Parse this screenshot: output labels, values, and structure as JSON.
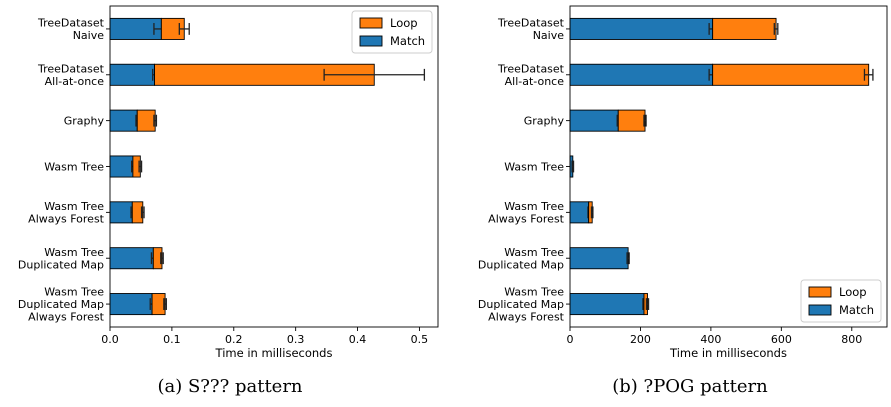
{
  "colors": {
    "match": "#1f77b4",
    "loop": "#ff7f0e",
    "edge": "#000000"
  },
  "chart_data": [
    {
      "type": "bar",
      "orientation": "horizontal",
      "stacked": true,
      "caption": "(a) S??? pattern",
      "xlabel": "Time in milliseconds",
      "xlim": [
        0,
        0.53
      ],
      "xticks": [
        0.0,
        0.1,
        0.2,
        0.3,
        0.4,
        0.5
      ],
      "xtick_labels": [
        "0.0",
        "0.1",
        "0.2",
        "0.3",
        "0.4",
        "0.5"
      ],
      "legend": {
        "position": "top-right",
        "entries": [
          "Loop",
          "Match"
        ]
      },
      "categories": [
        [
          "TreeDataset",
          "Naive"
        ],
        [
          "TreeDataset",
          "All-at-once"
        ],
        [
          "Graphy"
        ],
        [
          "Wasm Tree"
        ],
        [
          "Wasm Tree",
          "Always Forest"
        ],
        [
          "Wasm Tree",
          "Duplicated Map"
        ],
        [
          "Wasm Tree",
          "Duplicated Map",
          "Always Forest"
        ]
      ],
      "series": [
        {
          "name": "Match",
          "values": [
            0.083,
            0.072,
            0.044,
            0.037,
            0.036,
            0.07,
            0.068
          ],
          "errors": [
            0.012,
            0.003,
            0.002,
            0.002,
            0.002,
            0.003,
            0.003
          ]
        },
        {
          "name": "Loop",
          "values": [
            0.037,
            0.355,
            0.029,
            0.012,
            0.017,
            0.014,
            0.021
          ],
          "errors": [
            0.008,
            0.081,
            0.002,
            0.002,
            0.002,
            0.002,
            0.002
          ]
        }
      ]
    },
    {
      "type": "bar",
      "orientation": "horizontal",
      "stacked": true,
      "caption": "(b) ?POG pattern",
      "xlabel": "Time in milliseconds",
      "xlim": [
        0,
        900
      ],
      "xticks": [
        0,
        200,
        400,
        600,
        800
      ],
      "xtick_labels": [
        "0",
        "200",
        "400",
        "600",
        "800"
      ],
      "legend": {
        "position": "bottom-right",
        "entries": [
          "Loop",
          "Match"
        ]
      },
      "categories": [
        [
          "TreeDataset",
          "Naive"
        ],
        [
          "TreeDataset",
          "All-at-once"
        ],
        [
          "Graphy"
        ],
        [
          "Wasm Tree"
        ],
        [
          "Wasm Tree",
          "Always Forest"
        ],
        [
          "Wasm Tree",
          "Duplicated Map"
        ],
        [
          "Wasm Tree",
          "Duplicated Map",
          "Always Forest"
        ]
      ],
      "series": [
        {
          "name": "Match",
          "values": [
            405,
            405,
            137,
            8,
            53,
            165,
            210
          ],
          "errors": [
            10,
            10,
            3,
            2,
            2,
            3,
            3
          ]
        },
        {
          "name": "Loop",
          "values": [
            180,
            443,
            76,
            0,
            10,
            0,
            10
          ],
          "errors": [
            5,
            12,
            3,
            0,
            2,
            0,
            3
          ]
        }
      ]
    }
  ]
}
